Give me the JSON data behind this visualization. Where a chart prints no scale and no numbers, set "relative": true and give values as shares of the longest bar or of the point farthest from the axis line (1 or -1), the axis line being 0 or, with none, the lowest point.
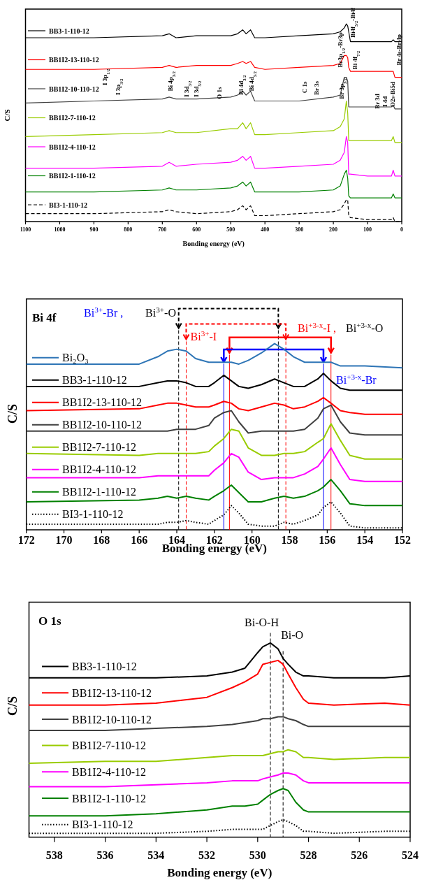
{
  "chart_data": [
    {
      "type": "line",
      "xlabel": "Bonding energy (eV)",
      "ylabel": "C/S",
      "relative": true,
      "xlim": [
        1100,
        0
      ],
      "xticks": [
        1100,
        1000,
        900,
        800,
        700,
        600,
        500,
        400,
        300,
        200,
        100,
        0
      ],
      "legend": "left",
      "x": [
        1100,
        900,
        700,
        680,
        660,
        600,
        500,
        480,
        465,
        455,
        442,
        430,
        400,
        300,
        200,
        180,
        168,
        162,
        158,
        155,
        150,
        100,
        30,
        25,
        20,
        0
      ],
      "series": [
        {
          "name": "BB3-1-110-12",
          "color": "#000000",
          "values": [
            0.93,
            0.93,
            0.94,
            0.95,
            0.93,
            0.94,
            0.94,
            0.95,
            0.97,
            0.95,
            0.97,
            0.93,
            0.93,
            0.94,
            0.95,
            0.96,
            0.98,
            1,
            0.99,
            0.96,
            0.91,
            0.91,
            0.91,
            0.92,
            0.91,
            0.91
          ]
        },
        {
          "name": "BB1I2-13-110-12",
          "color": "#ff0000",
          "values": [
            0.77,
            0.77,
            0.78,
            0.79,
            0.78,
            0.79,
            0.79,
            0.8,
            0.81,
            0.8,
            0.81,
            0.78,
            0.77,
            0.78,
            0.79,
            0.8,
            0.84,
            0.84,
            0.83,
            0.78,
            0.76,
            0.76,
            0.76,
            0.76,
            0.73,
            0.73
          ]
        },
        {
          "name": "BB1I2-10-110-12",
          "color": "#404040",
          "values": [
            0.6,
            0.61,
            0.62,
            0.63,
            0.62,
            0.62,
            0.63,
            0.64,
            0.66,
            0.64,
            0.66,
            0.61,
            0.61,
            0.61,
            0.63,
            0.64,
            0.73,
            0.73,
            0.71,
            0.58,
            0.58,
            0.58,
            0.58,
            0.59,
            0.57,
            0.57
          ]
        },
        {
          "name": "BB1I2-7-110-12",
          "color": "#99cc00",
          "values": [
            0.43,
            0.44,
            0.45,
            0.46,
            0.45,
            0.45,
            0.47,
            0.47,
            0.5,
            0.47,
            0.5,
            0.44,
            0.44,
            0.45,
            0.46,
            0.48,
            0.52,
            0.61,
            0.55,
            0.41,
            0.41,
            0.41,
            0.41,
            0.43,
            0.4,
            0.4
          ]
        },
        {
          "name": "BB1I2-4-110-12",
          "color": "#ff00ff",
          "values": [
            0.27,
            0.27,
            0.28,
            0.3,
            0.28,
            0.29,
            0.3,
            0.31,
            0.33,
            0.31,
            0.33,
            0.27,
            0.27,
            0.28,
            0.29,
            0.31,
            0.35,
            0.43,
            0.4,
            0.24,
            0.24,
            0.23,
            0.23,
            0.26,
            0.23,
            0.23
          ]
        },
        {
          "name": "BB1I2-1-110-12",
          "color": "#008000",
          "values": [
            0.15,
            0.15,
            0.16,
            0.17,
            0.16,
            0.16,
            0.17,
            0.18,
            0.2,
            0.18,
            0.2,
            0.15,
            0.15,
            0.15,
            0.16,
            0.18,
            0.24,
            0.26,
            0.22,
            0.13,
            0.12,
            0.12,
            0.12,
            0.14,
            0.12,
            0.12
          ]
        },
        {
          "name": "BI3-1-110-12",
          "color": "#000000",
          "line_style": "dashed",
          "values": [
            0.04,
            0.04,
            0.05,
            0.06,
            0.05,
            0.04,
            0.05,
            0.06,
            0.08,
            0.06,
            0.08,
            0.03,
            0.03,
            0.04,
            0.05,
            0.06,
            0.09,
            0.11,
            0.11,
            0.03,
            0.02,
            0.01,
            0.01,
            0.02,
            0.0,
            0.0
          ]
        }
      ],
      "annotations": [
        "I 3p$_{1/2}$",
        "I 3p$_{3/2}$",
        "Bi 4p$_{3/2}$",
        "I 3d$_{3/2}$",
        "I 3d$_{5/2}$",
        "O 1s",
        "Bi 4d$_{3/2}$",
        "Bi 4d$_{5/2}$",
        "C 1s",
        "Br 3s",
        "Br 3p$_{3/2}$",
        "Br3p$_{1/2}$-Br3p",
        "Bi4f$_{5/2}$-Bi4f",
        "Bi 4f$_{7/2}$",
        "Br 3d",
        "I 4d",
        "O2s-Bi5d",
        "Br 4s-Br 4p"
      ]
    },
    {
      "type": "line",
      "title": "Bi 4f",
      "xlabel": "Bonding energy (eV)",
      "ylabel": "C/S",
      "relative": true,
      "xlim": [
        172,
        152
      ],
      "xticks": [
        172,
        170,
        168,
        166,
        164,
        162,
        160,
        158,
        156,
        154,
        152
      ],
      "legend": "left",
      "x": [
        172,
        166,
        165,
        164.5,
        164,
        163.5,
        163,
        162.3,
        162,
        161.5,
        161.1,
        160.7,
        160.2,
        159.5,
        158.8,
        158.3,
        157.8,
        157.2,
        156.5,
        156.2,
        155.8,
        155.3,
        154.8,
        154,
        152
      ],
      "series": [
        {
          "name": "Bi₂O₃",
          "color": "#2e75b6",
          "values": [
            0.89,
            0.89,
            0.93,
            0.96,
            0.97,
            0.96,
            0.92,
            0.9,
            0.9,
            0.9,
            0.9,
            0.89,
            0.91,
            0.95,
            1.0,
            0.97,
            0.93,
            0.9,
            0.9,
            0.9,
            0.9,
            0.88,
            0.88,
            0.88,
            0.87
          ]
        },
        {
          "name": "BB3-1-110-12",
          "color": "#000000",
          "values": [
            0.77,
            0.77,
            0.79,
            0.8,
            0.8,
            0.79,
            0.77,
            0.77,
            0.79,
            0.83,
            0.8,
            0.77,
            0.76,
            0.78,
            0.81,
            0.79,
            0.77,
            0.77,
            0.81,
            0.84,
            0.8,
            0.76,
            0.75,
            0.75,
            0.75
          ]
        },
        {
          "name": "BB1I2-13-110-12",
          "color": "#ff0000",
          "values": [
            0.64,
            0.65,
            0.67,
            0.68,
            0.68,
            0.67,
            0.66,
            0.66,
            0.67,
            0.69,
            0.68,
            0.65,
            0.64,
            0.66,
            0.68,
            0.67,
            0.65,
            0.66,
            0.69,
            0.71,
            0.68,
            0.64,
            0.63,
            0.62,
            0.62
          ]
        },
        {
          "name": "BB1I2-10-110-12",
          "color": "#404040",
          "values": [
            0.53,
            0.53,
            0.53,
            0.53,
            0.54,
            0.54,
            0.54,
            0.56,
            0.6,
            0.63,
            0.64,
            0.58,
            0.52,
            0.53,
            0.53,
            0.53,
            0.53,
            0.54,
            0.6,
            0.65,
            0.67,
            0.58,
            0.52,
            0.51,
            0.51
          ]
        },
        {
          "name": "BB1I2-7-110-12",
          "color": "#99cc00",
          "values": [
            0.41,
            0.4,
            0.41,
            0.41,
            0.41,
            0.41,
            0.41,
            0.42,
            0.45,
            0.49,
            0.54,
            0.53,
            0.44,
            0.4,
            0.4,
            0.41,
            0.41,
            0.42,
            0.47,
            0.49,
            0.57,
            0.48,
            0.4,
            0.38,
            0.38
          ]
        },
        {
          "name": "BB1I2-4-110-12",
          "color": "#ff00ff",
          "values": [
            0.28,
            0.28,
            0.29,
            0.29,
            0.29,
            0.29,
            0.29,
            0.29,
            0.32,
            0.36,
            0.41,
            0.39,
            0.31,
            0.27,
            0.28,
            0.28,
            0.28,
            0.3,
            0.34,
            0.38,
            0.44,
            0.35,
            0.27,
            0.26,
            0.26
          ]
        },
        {
          "name": "BB1I2-1-110-12",
          "color": "#008000",
          "values": [
            0.15,
            0.16,
            0.17,
            0.18,
            0.17,
            0.18,
            0.17,
            0.16,
            0.18,
            0.21,
            0.24,
            0.2,
            0.15,
            0.15,
            0.17,
            0.18,
            0.17,
            0.18,
            0.21,
            0.23,
            0.27,
            0.21,
            0.14,
            0.13,
            0.13
          ]
        },
        {
          "name": "BI3-1-110-12",
          "color": "#000000",
          "line_style": "dotted",
          "values": [
            0.03,
            0.03,
            0.03,
            0.04,
            0.04,
            0.05,
            0.04,
            0.03,
            0.05,
            0.08,
            0.13,
            0.09,
            0.03,
            0.02,
            0.02,
            0.04,
            0.03,
            0.05,
            0.08,
            0.12,
            0.15,
            0.09,
            0.02,
            0.01,
            0.01
          ]
        }
      ],
      "ref_lines": [
        {
          "axis": "x",
          "value": 163.9,
          "color": "#000000",
          "line_style": "dashed"
        },
        {
          "axis": "x",
          "value": 158.6,
          "color": "#000000",
          "line_style": "dashed"
        },
        {
          "axis": "x",
          "value": 163.5,
          "color": "#ff0000",
          "line_style": "dashed"
        },
        {
          "axis": "x",
          "value": 158.2,
          "color": "#ff0000",
          "line_style": "dashed"
        },
        {
          "axis": "x",
          "value": 161.2,
          "color": "#ff0000",
          "line_style": "solid"
        },
        {
          "axis": "x",
          "value": 155.8,
          "color": "#ff0000",
          "line_style": "solid"
        },
        {
          "axis": "x",
          "value": 161.5,
          "color": "#0000ff",
          "line_style": "solid"
        },
        {
          "axis": "x",
          "value": 156.2,
          "color": "#0000ff",
          "line_style": "solid"
        }
      ],
      "annotations": [
        "Bi$^{3+}$-Br ,",
        "Bi$^{3+}$-O",
        "Bi$^{3+}$-I",
        "Bi$^{+3-x}$-I ,",
        "Bi$^{+3-x}$-O",
        "Bi$^{+3-x}$-Br"
      ]
    },
    {
      "type": "line",
      "title": "O 1s",
      "xlabel": "Bonding energy (eV)",
      "ylabel": "C/S",
      "relative": true,
      "xlim": [
        539,
        524
      ],
      "xticks": [
        538,
        536,
        534,
        532,
        530,
        528,
        526,
        524
      ],
      "legend": "left",
      "x": [
        539,
        536,
        534,
        532,
        531,
        530.5,
        530,
        529.8,
        529.5,
        529.2,
        529,
        528.8,
        528.5,
        528.2,
        528,
        527,
        525,
        524
      ],
      "series": [
        {
          "name": "BB3-1-110-12",
          "color": "#000000",
          "values": [
            0.82,
            0.82,
            0.82,
            0.83,
            0.85,
            0.87,
            0.95,
            0.98,
            1.0,
            0.97,
            0.92,
            0.89,
            0.85,
            0.83,
            0.83,
            0.82,
            0.82,
            0.83
          ]
        },
        {
          "name": "BB1I2-13-110-12",
          "color": "#ff0000",
          "values": [
            0.68,
            0.68,
            0.69,
            0.72,
            0.77,
            0.8,
            0.84,
            0.89,
            0.9,
            0.91,
            0.89,
            0.84,
            0.77,
            0.71,
            0.69,
            0.68,
            0.69,
            0.68
          ]
        },
        {
          "name": "BB1I2-10-110-12",
          "color": "#404040",
          "values": [
            0.55,
            0.55,
            0.56,
            0.57,
            0.58,
            0.59,
            0.6,
            0.61,
            0.61,
            0.62,
            0.62,
            0.61,
            0.6,
            0.58,
            0.57,
            0.57,
            0.57,
            0.57
          ]
        },
        {
          "name": "BB1I2-7-110-12",
          "color": "#99cc00",
          "values": [
            0.38,
            0.39,
            0.39,
            0.41,
            0.42,
            0.42,
            0.42,
            0.42,
            0.43,
            0.44,
            0.44,
            0.45,
            0.44,
            0.41,
            0.41,
            0.4,
            0.41,
            0.41
          ]
        },
        {
          "name": "BB1I2-4-110-12",
          "color": "#ff00ff",
          "values": [
            0.26,
            0.26,
            0.27,
            0.28,
            0.29,
            0.29,
            0.29,
            0.3,
            0.31,
            0.32,
            0.33,
            0.33,
            0.32,
            0.29,
            0.28,
            0.28,
            0.28,
            0.28
          ]
        },
        {
          "name": "BB1I2-1-110-12",
          "color": "#008000",
          "values": [
            0.11,
            0.11,
            0.12,
            0.14,
            0.16,
            0.16,
            0.17,
            0.19,
            0.22,
            0.24,
            0.25,
            0.24,
            0.18,
            0.14,
            0.13,
            0.13,
            0.13,
            0.13
          ]
        },
        {
          "name": "BI3-1-110-12",
          "color": "#000000",
          "line_style": "dotted",
          "values": [
            0.02,
            0.02,
            0.02,
            0.03,
            0.04,
            0.04,
            0.04,
            0.04,
            0.06,
            0.08,
            0.09,
            0.08,
            0.06,
            0.03,
            0.03,
            0.02,
            0.03,
            0.03
          ]
        }
      ],
      "ref_lines": [
        {
          "axis": "x",
          "value": 529.5,
          "label": "Bi-O-H",
          "color": "#000000",
          "line_style": "dashed"
        },
        {
          "axis": "x",
          "value": 529.0,
          "label": "Bi-O",
          "color": "#000000",
          "line_style": "dashed"
        }
      ]
    }
  ]
}
